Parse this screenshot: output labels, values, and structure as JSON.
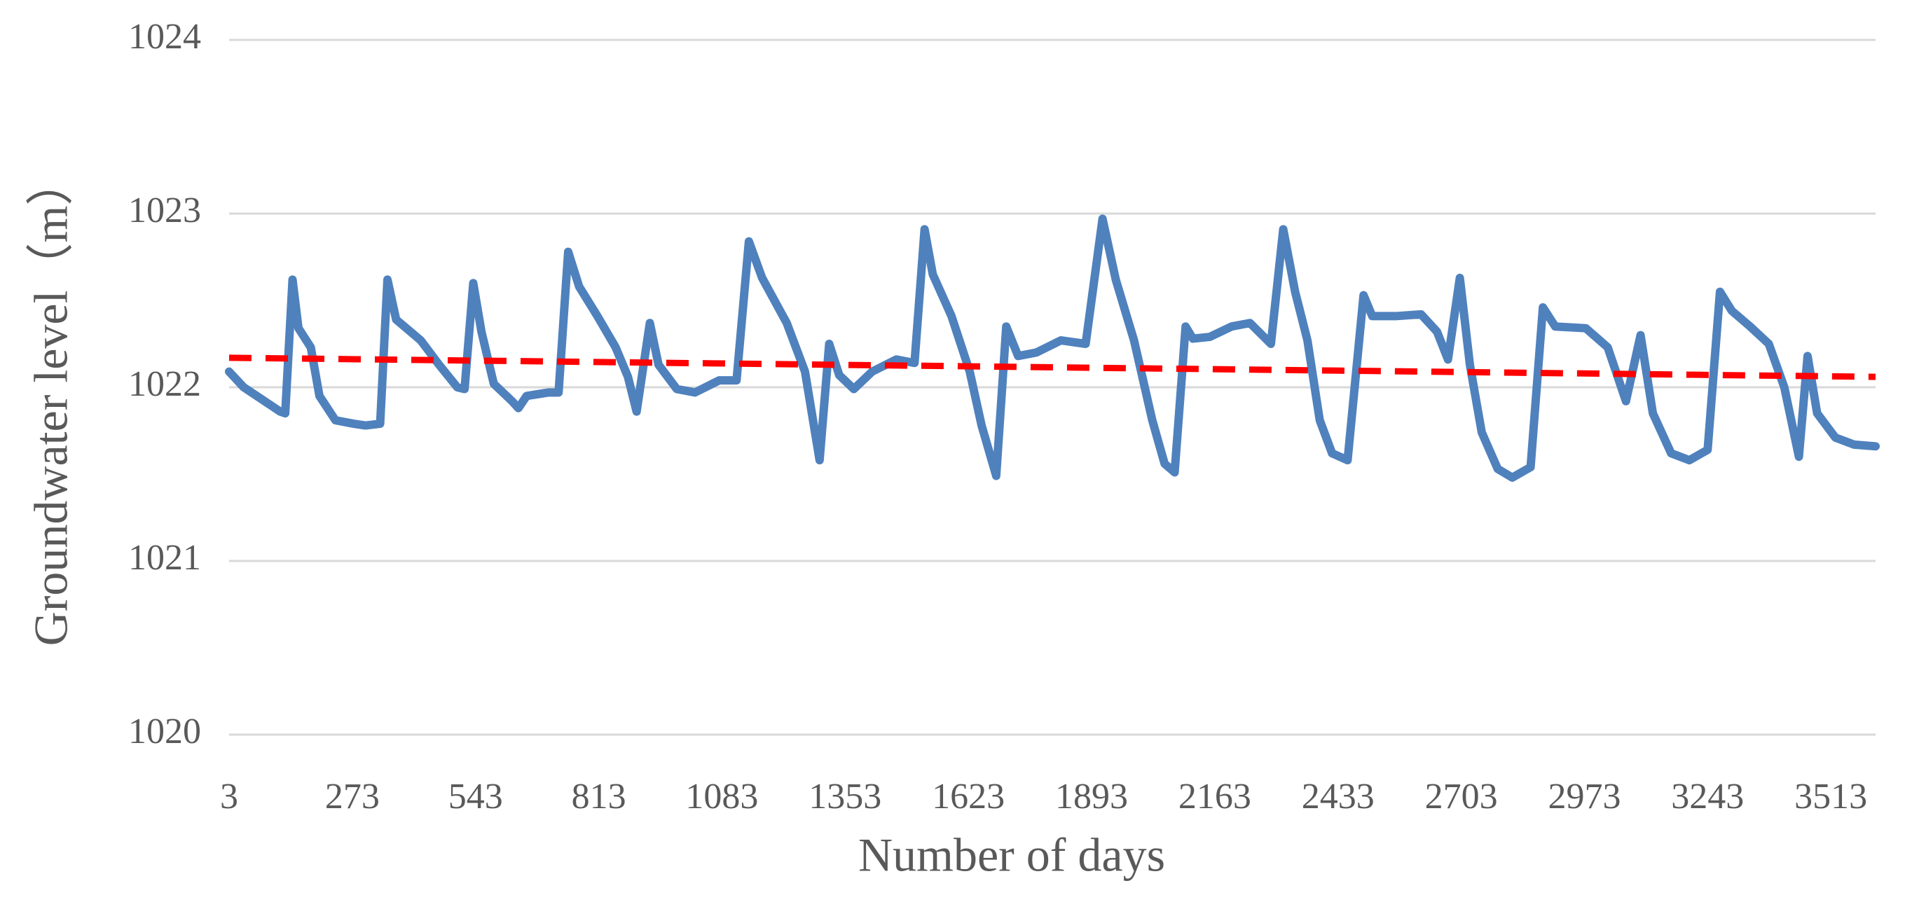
{
  "chart_data": {
    "type": "line",
    "x_label": "Number of days",
    "y_label": "Groundwater level（m）",
    "xlim": [
      3,
      3611
    ],
    "xticks": [
      3,
      273,
      543,
      813,
      1083,
      1353,
      1623,
      1893,
      2163,
      2433,
      2703,
      2973,
      3243,
      3513
    ],
    "ylim": [
      1020,
      1024
    ],
    "yticks": [
      1020,
      1021,
      1022,
      1023,
      1024
    ],
    "grid": true,
    "series": [
      {
        "color": "#4f81bd",
        "dash": false,
        "x": [
          3,
          35,
          115,
          126,
          142,
          155,
          182,
          201,
          236,
          276,
          302,
          334,
          350,
          369,
          423,
          463,
          503,
          519,
          538,
          556,
          583,
          623,
          637,
          655,
          703,
          725,
          746,
          770,
          810,
          850,
          877,
          896,
          925,
          944,
          984,
          1024,
          1077,
          1115,
          1142,
          1171,
          1225,
          1265,
          1297,
          1318,
          1340,
          1372,
          1412,
          1465,
          1505,
          1527,
          1545,
          1586,
          1626,
          1652,
          1684,
          1706,
          1732,
          1772,
          1826,
          1880,
          1917,
          1946,
          1986,
          2026,
          2053,
          2075,
          2099,
          2115,
          2152,
          2200,
          2240,
          2286,
          2313,
          2339,
          2366,
          2393,
          2420,
          2454,
          2489,
          2508,
          2562,
          2615,
          2650,
          2674,
          2700,
          2722,
          2748,
          2783,
          2815,
          2855,
          2882,
          2909,
          2976,
          3024,
          3064,
          3096,
          3123,
          3163,
          3203,
          3243,
          3270,
          3296,
          3336,
          3377,
          3411,
          3443,
          3462,
          3483,
          3523,
          3564,
          3611
        ],
        "values": [
          1022.09,
          1022.0,
          1021.86,
          1021.85,
          1022.62,
          1022.34,
          1022.23,
          1021.95,
          1021.81,
          1021.79,
          1021.78,
          1021.79,
          1022.62,
          1022.39,
          1022.27,
          1022.13,
          1022.0,
          1021.99,
          1022.6,
          1022.32,
          1022.02,
          1021.92,
          1021.88,
          1021.95,
          1021.97,
          1021.97,
          1022.78,
          1022.58,
          1022.41,
          1022.23,
          1022.06,
          1021.86,
          1022.37,
          1022.13,
          1021.99,
          1021.97,
          1022.04,
          1022.04,
          1022.84,
          1022.63,
          1022.37,
          1022.09,
          1021.58,
          1022.25,
          1022.07,
          1021.99,
          1022.09,
          1022.16,
          1022.14,
          1022.91,
          1022.65,
          1022.41,
          1022.09,
          1021.78,
          1021.49,
          1022.35,
          1022.18,
          1022.2,
          1022.27,
          1022.25,
          1022.97,
          1022.62,
          1022.27,
          1021.81,
          1021.56,
          1021.51,
          1022.35,
          1022.28,
          1022.29,
          1022.35,
          1022.37,
          1022.25,
          1022.91,
          1022.55,
          1022.27,
          1021.81,
          1021.62,
          1021.58,
          1022.53,
          1022.41,
          1022.41,
          1022.42,
          1022.32,
          1022.16,
          1022.63,
          1022.13,
          1021.74,
          1021.53,
          1021.48,
          1021.54,
          1022.46,
          1022.35,
          1022.34,
          1022.23,
          1021.92,
          1022.3,
          1021.85,
          1021.62,
          1021.58,
          1021.64,
          1022.55,
          1022.44,
          1022.35,
          1022.25,
          1022.0,
          1021.6,
          1022.18,
          1021.85,
          1021.71,
          1021.67,
          1021.66
        ]
      },
      {
        "color": "#ff0000",
        "dash": true,
        "x": [
          3,
          3611
        ],
        "values": [
          1022.17,
          1022.06
        ]
      }
    ]
  }
}
